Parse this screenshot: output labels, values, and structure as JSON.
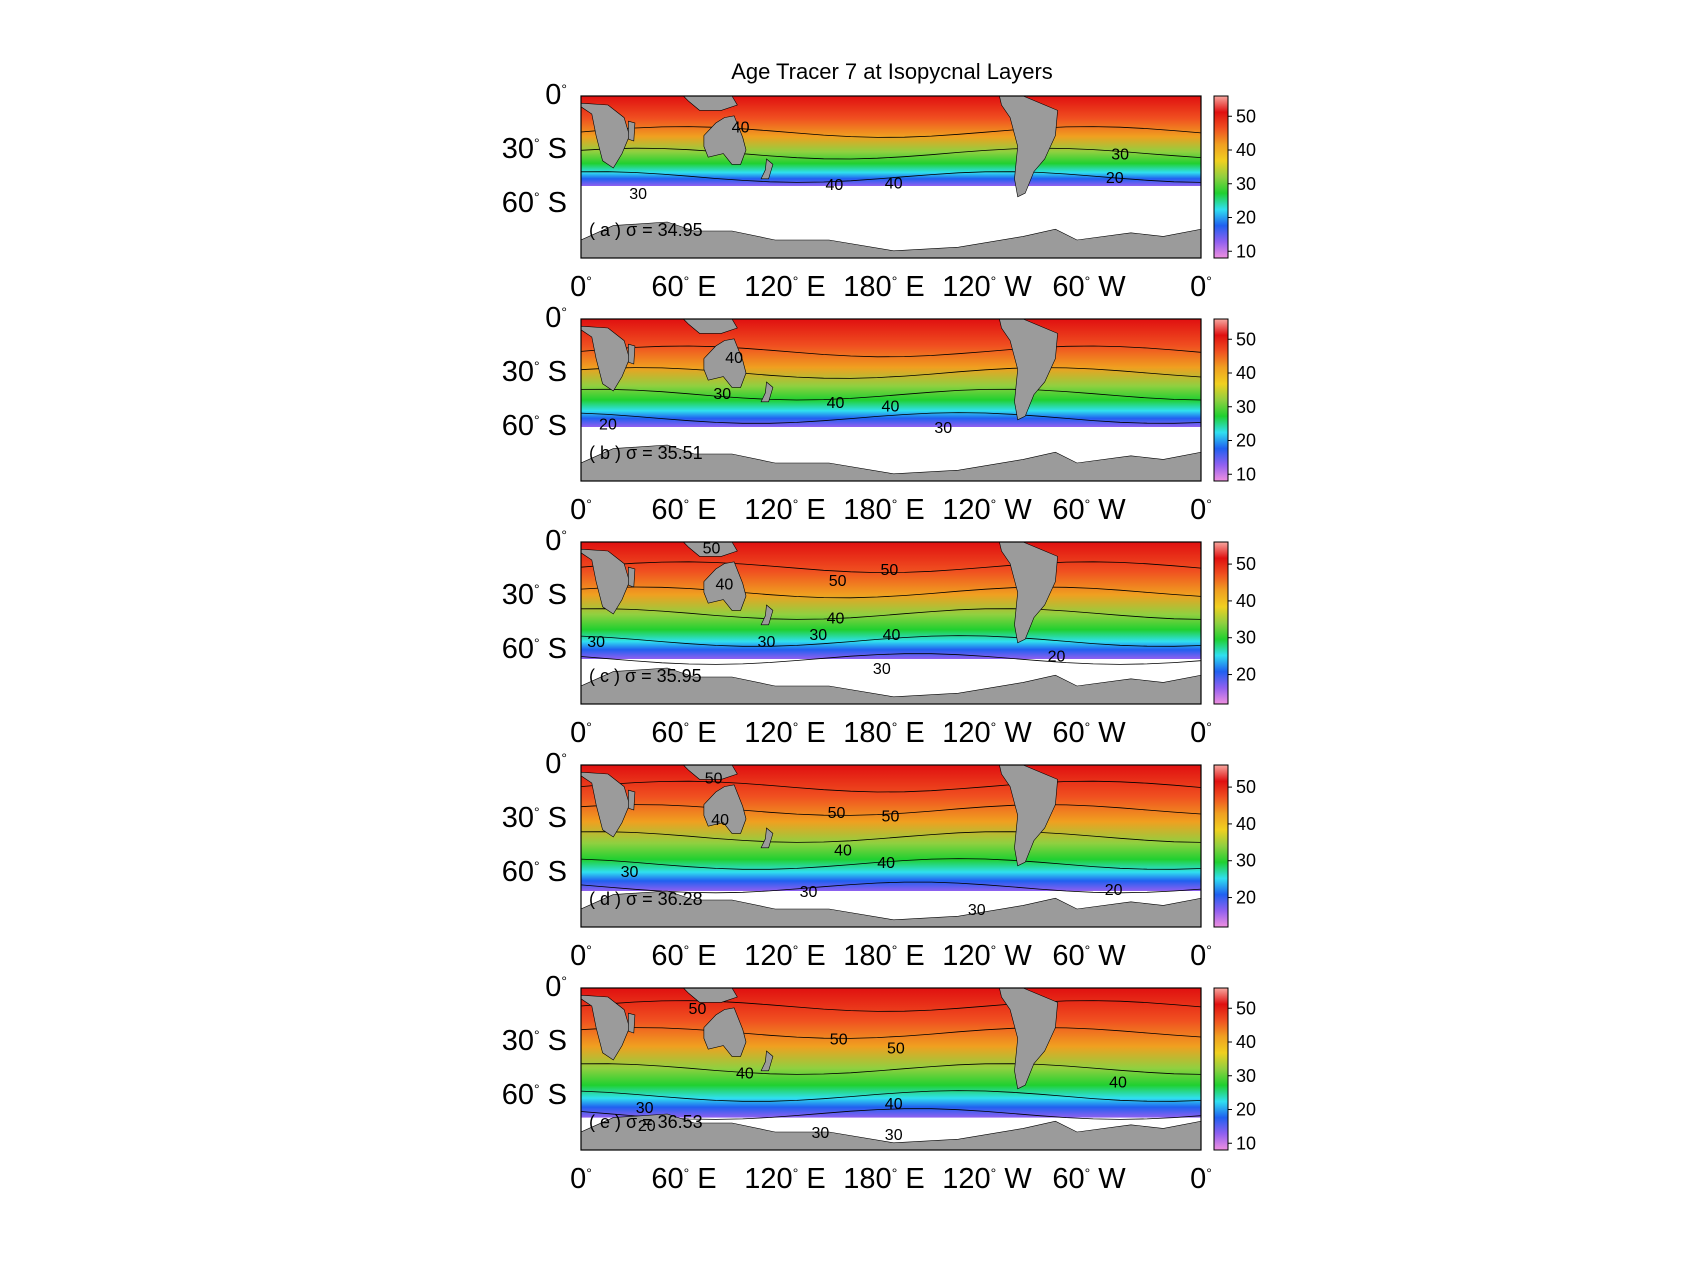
{
  "title": "Age Tracer 7 at Isopycnal Layers",
  "colors": {
    "land": "#9b9b9b",
    "no_data": "#ffffff",
    "scale": [
      "#f090e0",
      "#9060f0",
      "#2060f0",
      "#30e0f0",
      "#20d030",
      "#90d040",
      "#f0d020",
      "#f0a020",
      "#f05020",
      "#e01010",
      "#f8a8a0"
    ]
  },
  "axes": {
    "y_labels": [
      {
        "deg": "0",
        "hem": ""
      },
      {
        "deg": "30",
        "hem": "S"
      },
      {
        "deg": "60",
        "hem": "S"
      }
    ],
    "x_labels": [
      {
        "deg": "0",
        "hem": ""
      },
      {
        "deg": "60",
        "hem": "E"
      },
      {
        "deg": "120",
        "hem": "E"
      },
      {
        "deg": "180",
        "hem": "E"
      },
      {
        "deg": "120",
        "hem": "W"
      },
      {
        "deg": "60",
        "hem": "W"
      },
      {
        "deg": "0",
        "hem": ""
      }
    ],
    "degree_symbol": "°"
  },
  "panels": [
    {
      "label": "( a ) σ = 34.95",
      "colorbar_range": [
        8,
        56
      ],
      "colorbar_ticks": [
        "10",
        "20",
        "30",
        "40",
        "50"
      ],
      "contour_labels": [
        {
          "text": "40",
          "lon": 148,
          "lat": -18
        },
        {
          "text": "30",
          "lon": 53,
          "lat": -55
        },
        {
          "text": "40",
          "lon": 235,
          "lat": -50
        },
        {
          "text": "40",
          "lon": 290,
          "lat": -49
        },
        {
          "text": "30",
          "lon": 500,
          "lat": -33
        },
        {
          "text": "20",
          "lon": 495,
          "lat": -46
        }
      ]
    },
    {
      "label": "( b ) σ = 35.51",
      "colorbar_range": [
        8,
        56
      ],
      "colorbar_ticks": [
        "10",
        "20",
        "30",
        "40",
        "50"
      ],
      "contour_labels": [
        {
          "text": "40",
          "lon": 142,
          "lat": -22
        },
        {
          "text": "30",
          "lon": 131,
          "lat": -42
        },
        {
          "text": "20",
          "lon": 25,
          "lat": -59
        },
        {
          "text": "40",
          "lon": 236,
          "lat": -47
        },
        {
          "text": "40",
          "lon": 287,
          "lat": -49
        },
        {
          "text": "30",
          "lon": 336,
          "lat": -61
        }
      ]
    },
    {
      "label": "( c ) σ = 35.95",
      "colorbar_range": [
        12,
        56
      ],
      "colorbar_ticks": [
        "20",
        "30",
        "40",
        "50"
      ],
      "contour_labels": [
        {
          "text": "50",
          "lon": 121,
          "lat": -4
        },
        {
          "text": "40",
          "lon": 133,
          "lat": -24
        },
        {
          "text": "50",
          "lon": 238,
          "lat": -22
        },
        {
          "text": "50",
          "lon": 286,
          "lat": -16
        },
        {
          "text": "40",
          "lon": 236,
          "lat": -43
        },
        {
          "text": "30",
          "lon": 220,
          "lat": -52
        },
        {
          "text": "40",
          "lon": 288,
          "lat": -52
        },
        {
          "text": "30",
          "lon": 172,
          "lat": -56
        },
        {
          "text": "30",
          "lon": 14,
          "lat": -56
        },
        {
          "text": "30",
          "lon": 279,
          "lat": -71
        },
        {
          "text": "20",
          "lon": 441,
          "lat": -64
        }
      ]
    },
    {
      "label": "( d ) σ = 36.28",
      "colorbar_range": [
        12,
        56
      ],
      "colorbar_ticks": [
        "20",
        "30",
        "40",
        "50"
      ],
      "contour_labels": [
        {
          "text": "50",
          "lon": 123,
          "lat": -8
        },
        {
          "text": "40",
          "lon": 129,
          "lat": -31
        },
        {
          "text": "50",
          "lon": 237,
          "lat": -27
        },
        {
          "text": "50",
          "lon": 287,
          "lat": -29
        },
        {
          "text": "40",
          "lon": 243,
          "lat": -48
        },
        {
          "text": "40",
          "lon": 283,
          "lat": -55
        },
        {
          "text": "30",
          "lon": 45,
          "lat": -60
        },
        {
          "text": "30",
          "lon": 211,
          "lat": -71
        },
        {
          "text": "30",
          "lon": 367,
          "lat": -81
        },
        {
          "text": "20",
          "lon": 494,
          "lat": -70
        }
      ]
    },
    {
      "label": "( e ) σ = 36.53",
      "colorbar_range": [
        8,
        56
      ],
      "colorbar_ticks": [
        "10",
        "20",
        "30",
        "40",
        "50"
      ],
      "contour_labels": [
        {
          "text": "50",
          "lon": 108,
          "lat": -12
        },
        {
          "text": "40",
          "lon": 152,
          "lat": -48
        },
        {
          "text": "50",
          "lon": 239,
          "lat": -29
        },
        {
          "text": "50",
          "lon": 292,
          "lat": -34
        },
        {
          "text": "40",
          "lon": 290,
          "lat": -65
        },
        {
          "text": "40",
          "lon": 498,
          "lat": -53
        },
        {
          "text": "30",
          "lon": 59,
          "lat": -67
        },
        {
          "text": "20",
          "lon": 61,
          "lat": -77
        },
        {
          "text": "30",
          "lon": 222,
          "lat": -81
        },
        {
          "text": "30",
          "lon": 290,
          "lat": -82
        }
      ]
    }
  ]
}
